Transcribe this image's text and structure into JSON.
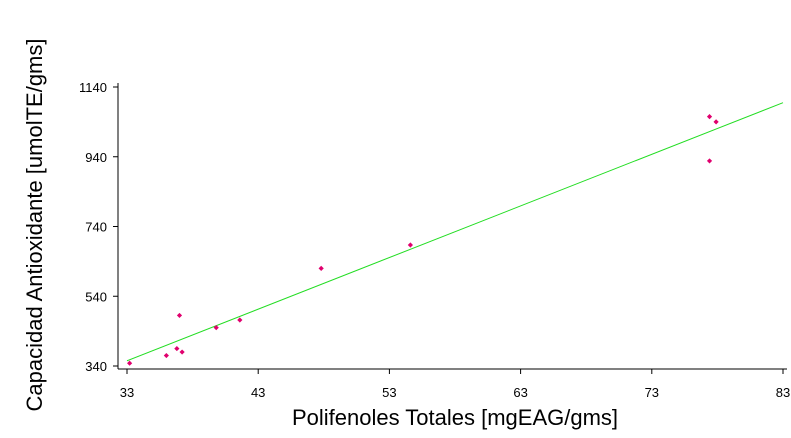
{
  "chart_data": {
    "type": "scatter",
    "title": "",
    "xlabel": "Polifenoles Totales [mgEAG/gms]",
    "ylabel": "Capacidad Antioxidante [umolTE/gms]",
    "xlim": [
      33,
      83
    ],
    "ylim": [
      340,
      1140
    ],
    "xticks": [
      33,
      43,
      53,
      63,
      73,
      83
    ],
    "yticks": [
      340,
      540,
      740,
      940,
      1140
    ],
    "grid": false,
    "legend": "none",
    "colors": {
      "points": "#e0006e",
      "trendline": "#22dd22",
      "axes": "#000000"
    },
    "series": [
      {
        "values": [
          {
            "x": 33.2,
            "y": 348
          },
          {
            "x": 36.0,
            "y": 370
          },
          {
            "x": 36.8,
            "y": 390
          },
          {
            "x": 37.2,
            "y": 380
          },
          {
            "x": 37.0,
            "y": 485
          },
          {
            "x": 39.8,
            "y": 450
          },
          {
            "x": 41.6,
            "y": 472
          },
          {
            "x": 47.8,
            "y": 620
          },
          {
            "x": 54.6,
            "y": 687
          },
          {
            "x": 77.4,
            "y": 1055
          },
          {
            "x": 77.9,
            "y": 1040
          },
          {
            "x": 77.4,
            "y": 928
          }
        ]
      }
    ],
    "trendline": {
      "x": [
        33,
        83
      ],
      "y": [
        355,
        1095
      ]
    }
  }
}
